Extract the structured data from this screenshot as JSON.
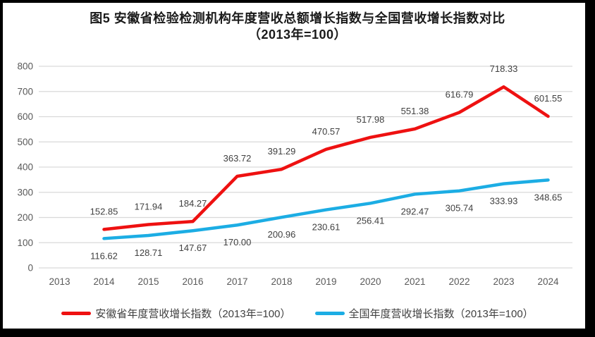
{
  "colors": {
    "gridline": "#d9d9d9",
    "tick_label": "#595959",
    "data_label": "#404040",
    "anhui_red": "#ee1111",
    "national_blue": "#1cade4",
    "frame_border": "#000000"
  },
  "chart_data": {
    "type": "line",
    "title": "图5  安徽省检验检测机构年度营收总额增长指数与全国营收增长指数对比",
    "subtitle": "（2013年=100）",
    "xlabel": "",
    "ylabel": "",
    "categories": [
      "2013",
      "2014",
      "2015",
      "2016",
      "2017",
      "2018",
      "2019",
      "2020",
      "2021",
      "2022",
      "2023",
      "2024"
    ],
    "ylim": [
      0,
      800
    ],
    "ytick_step": 100,
    "yticks": [
      0,
      100,
      200,
      300,
      400,
      500,
      600,
      700,
      800
    ],
    "grid": true,
    "legend_position": "bottom",
    "series": [
      {
        "name": "安徽省年度营收增长指数（2013年=100）",
        "color": "#ee1111",
        "values": [
          null,
          152.85,
          171.94,
          184.27,
          363.72,
          391.29,
          470.57,
          517.98,
          551.38,
          616.79,
          718.33,
          601.55
        ],
        "labels": [
          null,
          "152.85",
          "171.94",
          "184.27",
          "363.72",
          "391.29",
          "470.57",
          "517.98",
          "551.38",
          "616.79",
          "718.33",
          "601.55"
        ]
      },
      {
        "name": "全国年度营收增长指数（2013年=100）",
        "color": "#1cade4",
        "values": [
          null,
          116.62,
          128.71,
          147.67,
          170.0,
          200.96,
          230.61,
          256.41,
          292.47,
          305.74,
          333.93,
          348.65
        ],
        "labels": [
          null,
          "116.62",
          "128.71",
          "147.67",
          "170.00",
          "200.96",
          "230.61",
          "256.41",
          "292.47",
          "305.74",
          "333.93",
          "348.65"
        ]
      }
    ]
  }
}
